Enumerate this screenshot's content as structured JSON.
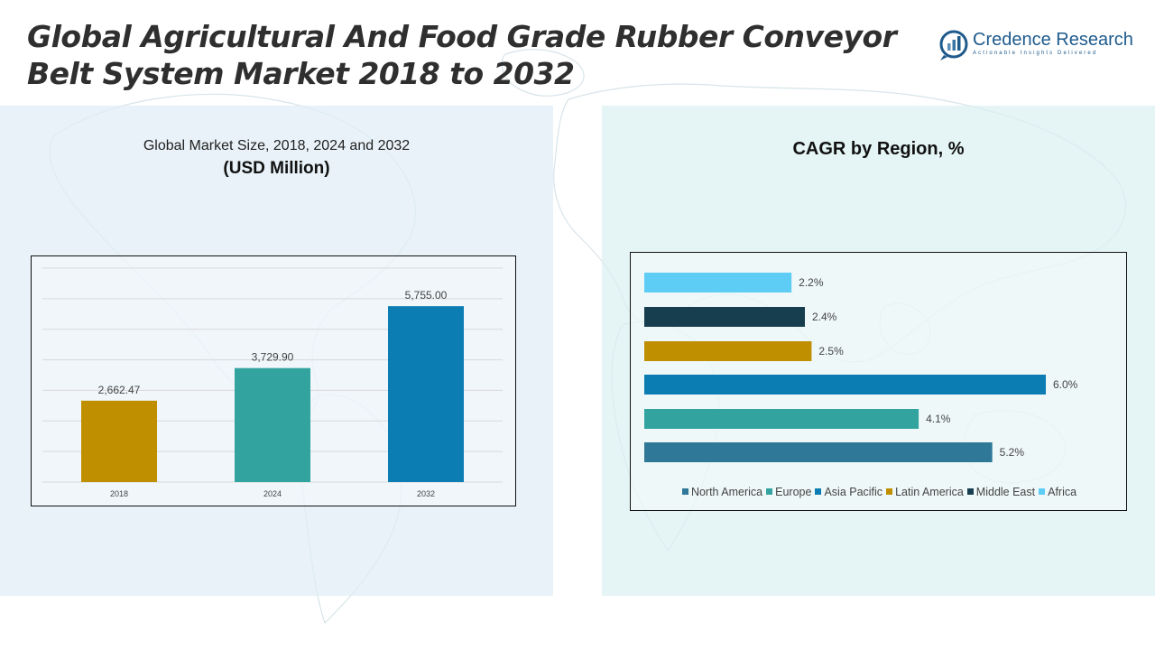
{
  "header": {
    "title": "Global Agricultural And Food Grade Rubber Conveyor Belt System Market 2018 to 2032"
  },
  "logo": {
    "name": "Credence Research",
    "tagline": "Actionable Insights Delivered",
    "icon": "credence-logo-icon"
  },
  "left_panel": {
    "subtitle": "Global Market Size, 2018, 2024 and 2032",
    "unit": "(USD Million)"
  },
  "right_panel": {
    "title": "CAGR by Region, %"
  },
  "colors": {
    "gold": "#bf8f00",
    "teal": "#33a3a0",
    "blue": "#0b7db2",
    "north_america": "#2f7898",
    "europe": "#33a3a0",
    "asia_pacific": "#0b7db2",
    "latin_america": "#bf8f00",
    "middle_east": "#173e4e",
    "africa": "#5ecdf6"
  },
  "chart_data": [
    {
      "type": "bar",
      "categories": [
        "2018",
        "2024",
        "2032"
      ],
      "values": [
        2662.47,
        3729.9,
        5755.0
      ],
      "value_labels": [
        "2,662.47",
        "3,729.90",
        "5,755.00"
      ],
      "colors": [
        "#bf8f00",
        "#33a3a0",
        "#0b7db2"
      ],
      "ylim": [
        0,
        7000
      ],
      "grid": true
    },
    {
      "type": "bar",
      "orientation": "horizontal",
      "categories": [
        "North America",
        "Europe",
        "Asia Pacific",
        "Latin America",
        "Middle East",
        "Africa"
      ],
      "values": [
        5.2,
        4.1,
        6.0,
        2.5,
        2.4,
        2.2
      ],
      "value_labels": [
        "5.2%",
        "4.1%",
        "6.0%",
        "2.5%",
        "2.4%",
        "2.2%"
      ],
      "colors": [
        "#2f7898",
        "#33a3a0",
        "#0b7db2",
        "#bf8f00",
        "#173e4e",
        "#5ecdf6"
      ],
      "xlim": [
        0,
        6.0
      ],
      "legend": "bottom",
      "grid": false
    }
  ]
}
